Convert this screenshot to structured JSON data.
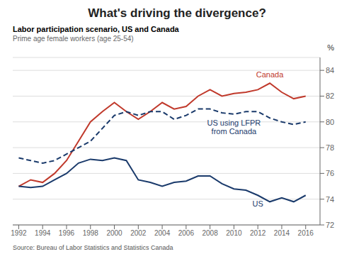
{
  "chart_data": {
    "type": "line",
    "title": "What's driving the divergence?",
    "subtitle": [
      "Labor participation scenario, US and Canada",
      "Prime age female workers (age 25-54)"
    ],
    "annotations": [
      "Source: Bureau of Labor Statistics and Statistics Canada"
    ],
    "ylabel": "%",
    "x": [
      1992,
      1993,
      1994,
      1995,
      1996,
      1997,
      1998,
      1999,
      2000,
      2001,
      2002,
      2003,
      2004,
      2005,
      2006,
      2007,
      2008,
      2009,
      2010,
      2011,
      2012,
      2013,
      2014,
      2015,
      2016
    ],
    "series": [
      {
        "name": "Canada",
        "color": "#c0392b",
        "line_style": "solid",
        "values": [
          75.0,
          75.5,
          75.3,
          76.0,
          77.0,
          78.5,
          80.0,
          80.8,
          81.5,
          80.8,
          80.2,
          80.8,
          81.5,
          81.0,
          81.2,
          82.0,
          82.5,
          82.0,
          82.2,
          82.3,
          82.5,
          83.0,
          82.3,
          81.8,
          82.0
        ]
      },
      {
        "name": "US",
        "color": "#1a3a6b",
        "line_style": "solid",
        "values": [
          75.0,
          74.9,
          75.0,
          75.5,
          76.0,
          76.8,
          77.1,
          77.0,
          77.2,
          77.0,
          75.5,
          75.3,
          75.0,
          75.3,
          75.4,
          75.8,
          75.8,
          75.2,
          74.8,
          74.7,
          74.3,
          73.8,
          74.1,
          73.8,
          74.3
        ]
      },
      {
        "name": "US using LFPR\nfrom Canada",
        "color": "#1a3a6b",
        "line_style": "dashed",
        "values": [
          77.2,
          77.0,
          76.8,
          77.0,
          77.5,
          78.0,
          78.5,
          79.5,
          80.5,
          80.8,
          80.5,
          80.8,
          80.8,
          80.2,
          80.5,
          81.0,
          81.0,
          80.7,
          80.6,
          80.8,
          80.8,
          80.3,
          80.0,
          79.8,
          80.0
        ]
      }
    ],
    "xlim": [
      1991.5,
      2017.2
    ],
    "xticks": [
      1992,
      1994,
      1996,
      1998,
      2000,
      2002,
      2004,
      2006,
      2008,
      2010,
      2012,
      2014,
      2016
    ],
    "ylim": [
      72,
      85
    ],
    "yticks": [
      72,
      74,
      76,
      78,
      80,
      82,
      84
    ],
    "grid": true
  }
}
